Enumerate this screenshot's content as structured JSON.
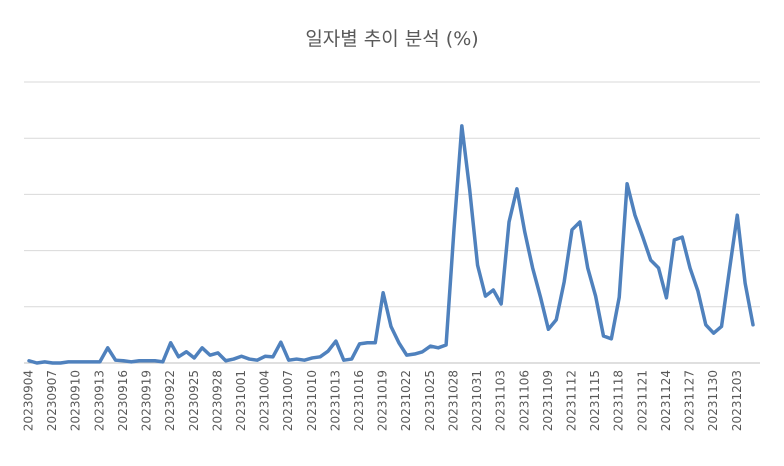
{
  "chart_data": {
    "type": "line",
    "title": "일자별 추이 분석 (%)",
    "categories": [
      "20230904",
      null,
      null,
      "20230907",
      null,
      null,
      "20230910",
      null,
      null,
      "20230913",
      null,
      null,
      "20230916",
      null,
      null,
      "20230919",
      null,
      null,
      "20230922",
      null,
      null,
      "20230925",
      null,
      null,
      "20230928",
      null,
      null,
      "20231001",
      null,
      null,
      "20231004",
      null,
      null,
      "20231007",
      null,
      null,
      "20231010",
      null,
      null,
      "20231013",
      null,
      null,
      "20231016",
      null,
      null,
      "20231019",
      null,
      null,
      "20231022",
      null,
      null,
      "20231025",
      null,
      null,
      "20231028",
      null,
      null,
      "20231031",
      null,
      null,
      "20231103",
      null,
      null,
      "20231106",
      null,
      null,
      "20231109",
      null,
      null,
      "20231112",
      null,
      null,
      "20231115",
      null,
      null,
      "20231118",
      null,
      null,
      "20231121",
      null,
      null,
      "20231124",
      null,
      null,
      "20231127",
      null,
      null,
      "20231130",
      null,
      null,
      "20231203",
      null,
      null
    ],
    "values": [
      0.04,
      0,
      0.02,
      0,
      0,
      0.02,
      0.02,
      0.02,
      0.02,
      0.02,
      0.27,
      0.05,
      0.04,
      0.02,
      0.04,
      0.04,
      0.04,
      0.02,
      0.36,
      0.11,
      0.2,
      0.09,
      0.27,
      0.14,
      0.18,
      0.04,
      0.07,
      0.12,
      0.07,
      0.05,
      0.12,
      0.11,
      0.37,
      0.05,
      0.07,
      0.05,
      0.09,
      0.11,
      0.21,
      0.39,
      0.05,
      0.07,
      0.34,
      0.36,
      0.36,
      1.25,
      0.65,
      0.36,
      0.14,
      0.16,
      0.2,
      0.3,
      0.27,
      0.32,
      2.37,
      4.22,
      3.08,
      1.74,
      1.19,
      1.3,
      1.05,
      2.51,
      3.1,
      2.33,
      1.69,
      1.17,
      0.6,
      0.77,
      1.44,
      2.37,
      2.51,
      1.69,
      1.19,
      0.48,
      0.43,
      1.17,
      3.19,
      2.63,
      2.24,
      1.83,
      1.69,
      1.16,
      2.19,
      2.24,
      1.69,
      1.28,
      0.68,
      0.53,
      0.65,
      1.65,
      2.63,
      1.42,
      0.68
    ],
    "color": "#4f81bd",
    "ylim": [
      0,
      5
    ],
    "yticks": [
      0,
      1,
      2,
      3,
      4,
      5
    ],
    "grid": true
  }
}
